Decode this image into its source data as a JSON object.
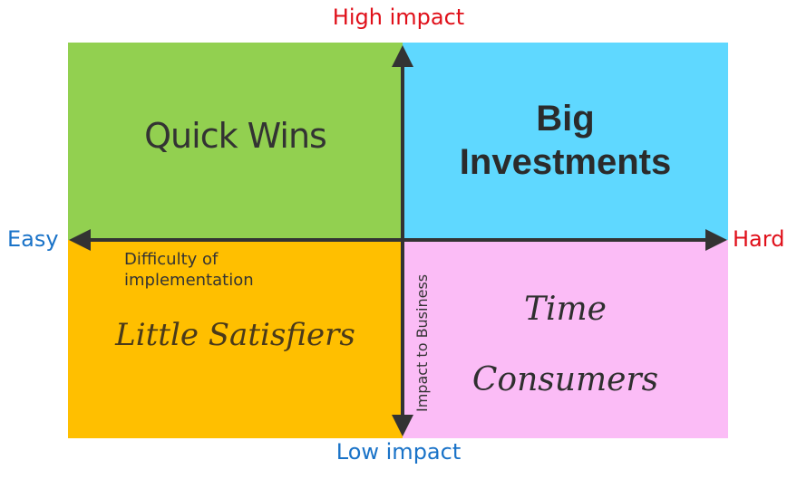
{
  "labels": {
    "top": "High impact",
    "bottom": "Low impact",
    "left": "Easy",
    "right": "Hard"
  },
  "label_colors": {
    "top": "#e0101a",
    "bottom": "#1a73c8",
    "left": "#1a73c8",
    "right": "#e0101a"
  },
  "quadrants": {
    "top_left": {
      "title": "Quick Wins",
      "color": "#92d050"
    },
    "top_right": {
      "title_line1": "Big",
      "title_line2": "Investments",
      "color": "#5fd8ff"
    },
    "bottom_left": {
      "title": "Little Satisfiers",
      "color": "#ffbf00"
    },
    "bottom_right": {
      "title_line1": "Time",
      "title_line2": "Consumers",
      "color": "#fbbcf6"
    }
  },
  "axis_notes": {
    "x_line1": "Difficulty of",
    "x_line2": "implementation",
    "y": "Impact to Business"
  },
  "axis_color": "#333333"
}
